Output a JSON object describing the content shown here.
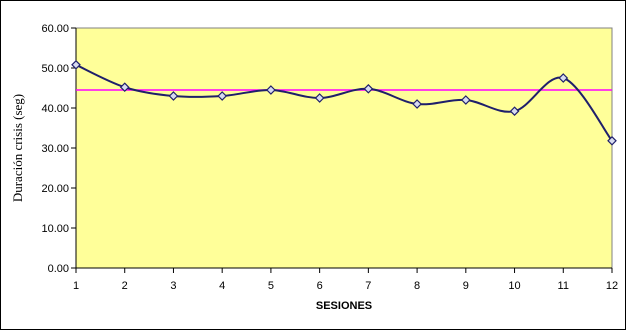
{
  "chart_data": {
    "type": "line",
    "x": [
      1,
      2,
      3,
      4,
      5,
      6,
      7,
      8,
      9,
      10,
      11,
      12
    ],
    "series": [
      {
        "values": [
          50.8,
          45.2,
          43.0,
          43.0,
          44.5,
          42.5,
          44.8,
          41.0,
          42.0,
          39.2,
          47.5,
          31.8
        ],
        "color": "#1f1f6b"
      }
    ],
    "reference_line": {
      "value": 44.5,
      "color": "#ff00ff"
    },
    "xlabel": "SESIONES",
    "ylabel": "Duración crisis (seg)",
    "ylim": [
      0,
      60
    ],
    "yticks": [
      "0.00",
      "10.00",
      "20.00",
      "30.00",
      "40.00",
      "50.00",
      "60.00"
    ],
    "xticks": [
      "1",
      "2",
      "3",
      "4",
      "5",
      "6",
      "7",
      "8",
      "9",
      "10",
      "11",
      "12"
    ],
    "plot_background": "#ffff99",
    "grid": false,
    "legend": "none",
    "marker": "diamond",
    "smooth": true
  }
}
